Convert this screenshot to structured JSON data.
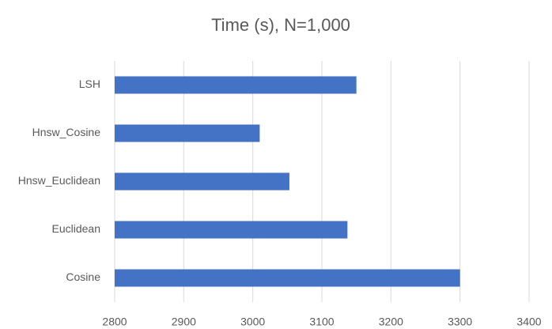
{
  "chart_data": {
    "type": "bar",
    "horizontal": true,
    "title": "Time (s), N=1,000",
    "categories": [
      "LSH",
      "Hnsw_Cosine",
      "Hnsw_Euclidean",
      "Euclidean",
      "Cosine"
    ],
    "values": [
      3150,
      3010,
      3053,
      3137,
      3300
    ],
    "color": "#4472c4",
    "xlim": [
      2800,
      3400
    ],
    "xticks": [
      2800,
      2900,
      3000,
      3100,
      3200,
      3300,
      3400
    ],
    "grid": true
  }
}
